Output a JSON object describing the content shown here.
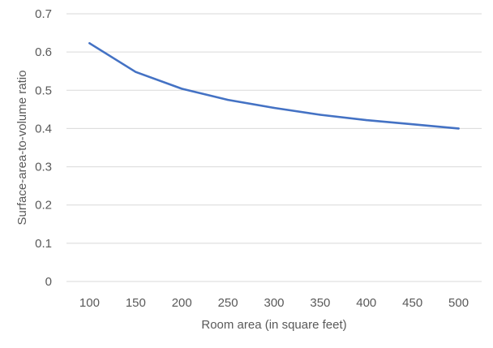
{
  "chart_data": {
    "type": "line",
    "title": "",
    "xlabel": "Room area (in square feet)",
    "ylabel": "Surface-area-to-volume ratio",
    "categories": [
      "100",
      "150",
      "200",
      "250",
      "300",
      "350",
      "400",
      "450",
      "500"
    ],
    "series": [
      {
        "values": [
          0.623,
          0.548,
          0.504,
          0.475,
          0.454,
          0.436,
          0.422,
          0.411,
          0.4
        ],
        "color": "#4472C4"
      }
    ],
    "ylim": [
      0,
      0.7
    ],
    "y_ticks": [
      "0",
      "0.1",
      "0.2",
      "0.3",
      "0.4",
      "0.5",
      "0.6",
      "0.7"
    ],
    "grid": true,
    "legend": "none",
    "gridline_color": "#d9d9d9"
  }
}
